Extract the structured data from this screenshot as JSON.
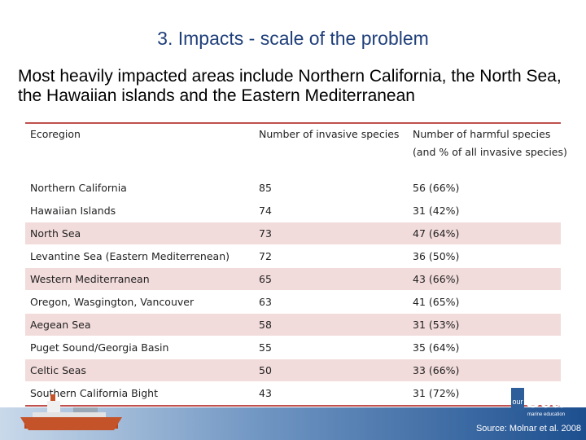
{
  "title": "3. Impacts - scale of the problem",
  "subtitle": "Most heavily impacted areas include Northern California, the North Sea, the Hawaiian islands and the Eastern Mediterranean",
  "table": {
    "headers": [
      "Ecoregion",
      "Number of invasive species",
      "Number of harmful species (and % of all invasive species)"
    ],
    "rows": [
      {
        "ecoregion": "Northern California",
        "invasive": "85",
        "harmful": "56  (66%)"
      },
      {
        "ecoregion": "Hawaiian Islands",
        "invasive": "74",
        "harmful": "31  (42%)"
      },
      {
        "ecoregion": "North Sea",
        "invasive": "73",
        "harmful": "47  (64%)"
      },
      {
        "ecoregion": "Levantine Sea (Eastern Mediterrenean)",
        "invasive": "72",
        "harmful": "36  (50%)"
      },
      {
        "ecoregion": "Western Mediterranean",
        "invasive": "65",
        "harmful": "43  (66%)"
      },
      {
        "ecoregion": "Oregon, Wasgington, Vancouver",
        "invasive": "63",
        "harmful": "41  (65%)"
      },
      {
        "ecoregion": "Aegean Sea",
        "invasive": "58",
        "harmful": "31  (53%)"
      },
      {
        "ecoregion": "Puget Sound/Georgia Basin",
        "invasive": "55",
        "harmful": "35  (64%)"
      },
      {
        "ecoregion": "Celtic Seas",
        "invasive": "50",
        "harmful": "33  (66%)"
      },
      {
        "ecoregion": "Southern California Bight",
        "invasive": "43",
        "harmful": "31  (72%)"
      }
    ]
  },
  "logo": {
    "text": "Sea",
    "prefix": "our",
    "tagline": "marine education"
  },
  "source": "Source: Molnar et al. 2008",
  "colors": {
    "accent_rule": "#c0504d",
    "alt_row": "#f2dcdb",
    "title": "#1f3f7a"
  }
}
